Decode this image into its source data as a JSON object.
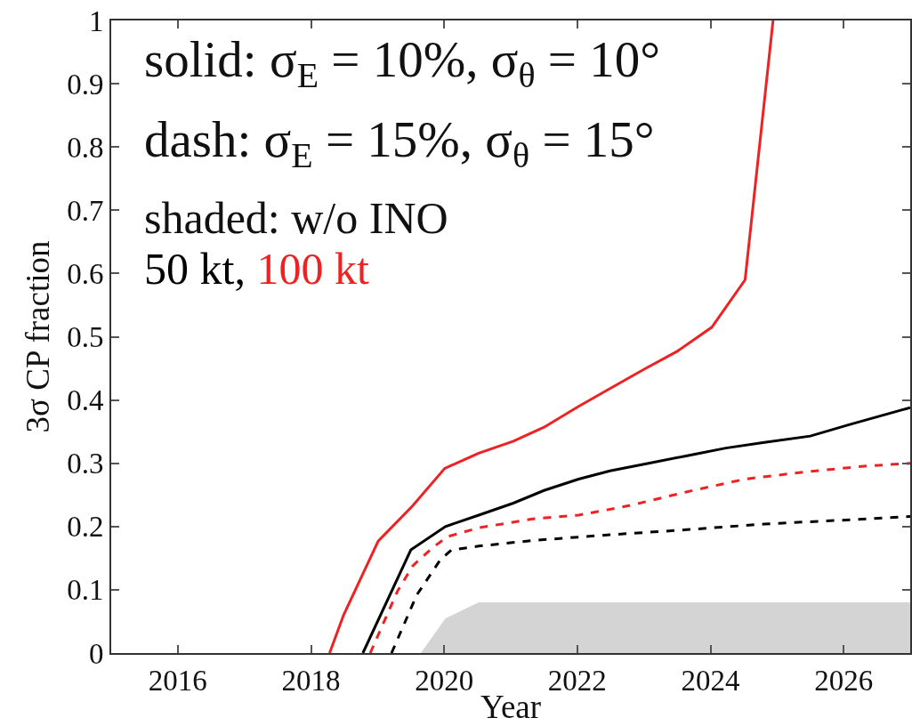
{
  "chart_data": {
    "type": "line",
    "xlabel": "Year",
    "ylabel": "3σ CP fraction",
    "annotations": [
      "solid: σ$_{E}$ = 10%, σ$_{θ}$ = 10°",
      "dash: σ$_{E}$ = 15%, σ$_{θ}$ = 15°",
      "shaded: w/o INO"
    ],
    "xlim": [
      2015,
      2027
    ],
    "xticks": [
      2016,
      2018,
      2020,
      2022,
      2024,
      2026
    ],
    "ylim": [
      0,
      1
    ],
    "yticks": [
      0,
      0.1,
      0.2,
      0.3,
      0.4,
      0.5,
      0.6,
      0.7,
      0.8,
      0.9,
      1
    ],
    "legend": "top left",
    "series": [
      {
        "type": "area",
        "color": "#d4d4d4",
        "x": [
          2019.65,
          2020.02,
          2020.52,
          2027
        ],
        "values": [
          0,
          0.055,
          0.08,
          0.08
        ]
      },
      {
        "name": "50 kt,",
        "color": "#000000",
        "line_style": "solid",
        "x": [
          2018.78,
          2019.5,
          2020.02,
          2020.52,
          2021.04,
          2021.5,
          2022.02,
          2022.49,
          2023.07,
          2023.65,
          2024.23,
          2024.81,
          2025.5,
          2026.08,
          2027
        ],
        "values": [
          0,
          0.163,
          0.2,
          0.218,
          0.237,
          0.257,
          0.275,
          0.288,
          0.3,
          0.312,
          0.324,
          0.333,
          0.343,
          0.361,
          0.388
        ]
      },
      {
        "name": "100 kt",
        "color": "#ee2222",
        "line_style": "solid",
        "x": [
          2018.28,
          2018.49,
          2019.01,
          2019.53,
          2020.01,
          2020.52,
          2021.04,
          2021.5,
          2022.02,
          2022.49,
          2023.01,
          2023.5,
          2024.02,
          2024.52,
          2024.94
        ],
        "values": [
          0,
          0.06,
          0.177,
          0.233,
          0.292,
          0.316,
          0.335,
          0.357,
          0.39,
          0.418,
          0.449,
          0.477,
          0.515,
          0.59,
          1.0
        ]
      },
      {
        "color": "#000000",
        "line_style": "dashed",
        "x": [
          2019.21,
          2019.59,
          2019.94,
          2020.11,
          2020.52,
          2021.33,
          2022.49,
          2023.65,
          2024.81,
          2025.97,
          2027
        ],
        "values": [
          0,
          0.092,
          0.147,
          0.163,
          0.169,
          0.178,
          0.187,
          0.195,
          0.204,
          0.21,
          0.216
        ]
      },
      {
        "color": "#ee2222",
        "line_style": "dashed",
        "x": [
          2018.89,
          2019.3,
          2019.53,
          2019.82,
          2020.05,
          2020.52,
          2021.33,
          2022.02,
          2022.78,
          2023.65,
          2024.52,
          2025.39,
          2026.26,
          2027
        ],
        "values": [
          0,
          0.098,
          0.138,
          0.166,
          0.184,
          0.198,
          0.212,
          0.218,
          0.233,
          0.255,
          0.275,
          0.286,
          0.295,
          0.3
        ]
      }
    ]
  }
}
